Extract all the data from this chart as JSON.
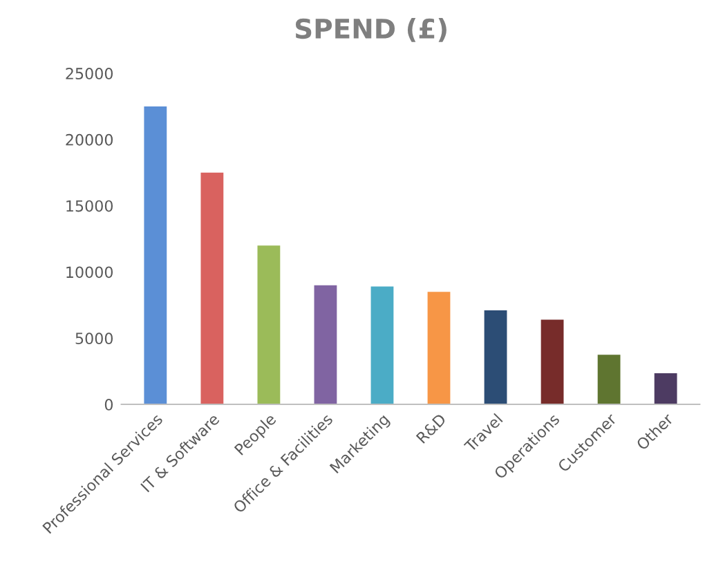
{
  "chart_data": {
    "type": "bar",
    "title": "SPEND (£)",
    "categories": [
      "Professional Services",
      "IT & Software",
      "People",
      "Office & Facilities",
      "Marketing",
      "R&D",
      "Travel",
      "Operations",
      "Customer",
      "Other"
    ],
    "values": [
      22500,
      17500,
      12000,
      9000,
      8900,
      8500,
      7100,
      6400,
      3750,
      2350
    ],
    "colors": [
      "#5b8fd6",
      "#d9625f",
      "#9bbb59",
      "#8064a2",
      "#4bacc6",
      "#f79646",
      "#2c4d75",
      "#772c2a",
      "#5f7530",
      "#4d3b62"
    ],
    "ylim": [
      0,
      25000
    ],
    "yticks": [
      0,
      5000,
      10000,
      15000,
      20000,
      25000
    ],
    "grid": false,
    "legend": false
  }
}
